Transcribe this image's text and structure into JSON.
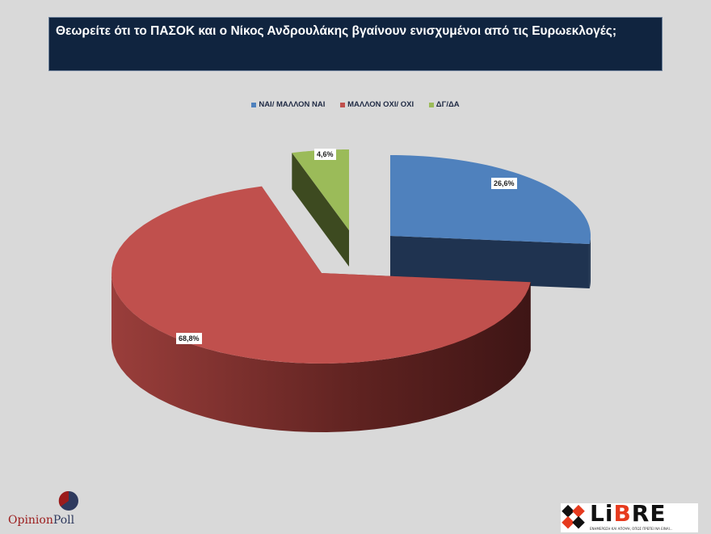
{
  "title": "Θεωρείτε ότι το ΠΑΣΟΚ και ο Νίκος Ανδρουλάκης βγαίνουν ενισχυμένοι από τις Ευρωεκλογές;",
  "chart_data": {
    "type": "pie",
    "style": "3d-exploded",
    "legend_position": "top",
    "categories": [
      "ΝΑΙ/ ΜΑΛΛΟΝ ΝΑΙ",
      "ΜΑΛΛΟΝ ΟΧΙ/ ΟΧΙ",
      "ΔΓ/ΔΑ"
    ],
    "values": [
      26.6,
      68.8,
      4.6
    ],
    "labels": [
      "26,6%",
      "68,8%",
      "4,6%"
    ],
    "colors": [
      "#4f81bd",
      "#c0504d",
      "#9bbb59"
    ]
  },
  "logos": {
    "left": "OpinionPoll",
    "left_parts": [
      "Opinion",
      "Poll"
    ],
    "right": "LiBRE",
    "right_sub": "ΕΝΗΜΕΡΩΣΗ ΚΑΙ ΑΠΟΨΗ, ΟΠΩΣ ΠΡΕΠΕΙ ΝΑ ΕΙΝΑΙ..."
  }
}
